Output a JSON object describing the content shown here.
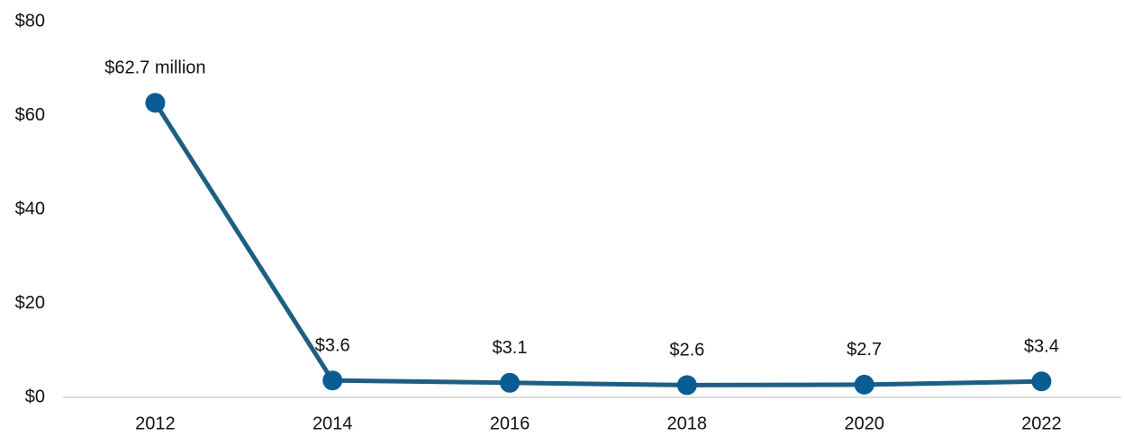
{
  "chart_data": {
    "type": "line",
    "categories": [
      "2012",
      "2014",
      "2016",
      "2018",
      "2020",
      "2022"
    ],
    "series": [
      {
        "color": "#0a5d94",
        "line_color": "#1d5f82",
        "values": [
          62.7,
          3.6,
          3.1,
          2.6,
          2.7,
          3.4
        ],
        "value_labels": [
          "$62.7 million",
          "$3.6",
          "$3.1",
          "$2.6",
          "$2.7",
          "$3.4"
        ]
      }
    ],
    "ylim": [
      0,
      80
    ],
    "yticks": [
      {
        "value": 0,
        "label": "$0"
      },
      {
        "value": 20,
        "label": "$20"
      },
      {
        "value": 40,
        "label": "$40"
      },
      {
        "value": 60,
        "label": "$60"
      },
      {
        "value": 80,
        "label": "$80"
      }
    ],
    "grid": false
  }
}
